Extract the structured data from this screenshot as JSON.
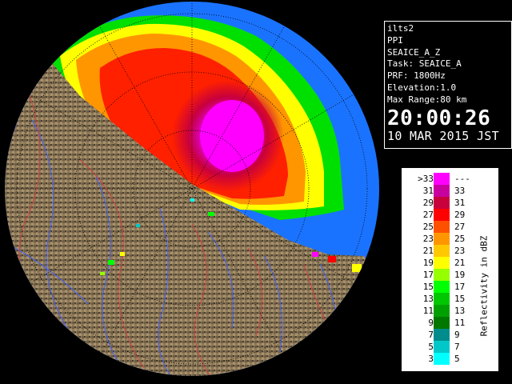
{
  "info": {
    "site": "ilts2",
    "scan_type": "PPI",
    "product": "SEAICE_A_Z",
    "task": "Task: SEAICE_A",
    "prf": "PRF: 1800Hz",
    "elevation": "Elevation:1.0",
    "max_range": "Max Range:80 km",
    "time": "20:00:26",
    "date": "10 MAR 2015 JST"
  },
  "legend": {
    "unit": "Reflectivity in dBZ",
    "rows": [
      {
        "lo": ">33",
        "hi": "---",
        "color": "#ff00ff"
      },
      {
        "lo": "31",
        "hi": "33",
        "color": "#c800a0"
      },
      {
        "lo": "29",
        "hi": "31",
        "color": "#c8003c"
      },
      {
        "lo": "27",
        "hi": "29",
        "color": "#ff0000"
      },
      {
        "lo": "25",
        "hi": "27",
        "color": "#ff5000"
      },
      {
        "lo": "23",
        "hi": "25",
        "color": "#ff9600"
      },
      {
        "lo": "21",
        "hi": "23",
        "color": "#ffc800"
      },
      {
        "lo": "19",
        "hi": "21",
        "color": "#ffff00"
      },
      {
        "lo": "17",
        "hi": "19",
        "color": "#96ff00"
      },
      {
        "lo": "15",
        "hi": "17",
        "color": "#00ff00"
      },
      {
        "lo": "13",
        "hi": "15",
        "color": "#00c800"
      },
      {
        "lo": "11",
        "hi": "13",
        "color": "#00a000"
      },
      {
        "lo": "9",
        "hi": "11",
        "color": "#007800"
      },
      {
        "lo": "7",
        "hi": "9",
        "color": "#008c8c"
      },
      {
        "lo": "5",
        "hi": "7",
        "color": "#00c8c8"
      },
      {
        "lo": "3",
        "hi": "5",
        "color": "#00ffff"
      }
    ]
  },
  "colors": {
    "sea": "#1a73ff",
    "land": "#8b7355",
    "outside": "#000000",
    "range_ring": "#000000",
    "river": "#4060ff",
    "boundary": "#d04040"
  }
}
